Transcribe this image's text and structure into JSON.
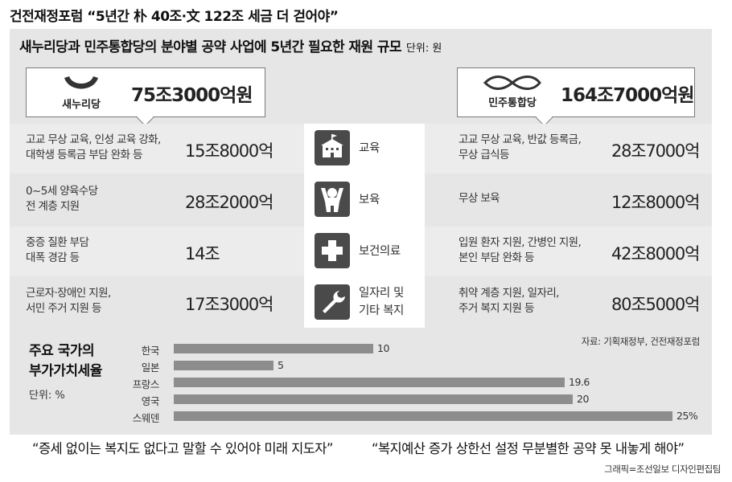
{
  "headline": "건전재정포럼 “5년간 朴 40조·文 122조 세금 더 걷어야”",
  "panel_title": "새누리당과 민주통합당의 분야별 공약 사업에 5년간 필요한 재원 규모",
  "panel_unit": "단위: 원",
  "parties": {
    "left": {
      "name": "새누리당",
      "total": "75조3000억원"
    },
    "right": {
      "name": "민주통합당",
      "total": "164조7000억원"
    }
  },
  "rows": [
    {
      "category": "교육",
      "icon": "school-icon",
      "left_desc": [
        "고교 무상 교육, 인성 교육 강화,",
        "대학생 등록금 부담 완화 등"
      ],
      "left_amount": "15조8000억",
      "right_desc": [
        "고교 무상 교육, 반값 등록금,",
        "무상 급식등"
      ],
      "right_amount": "28조7000억"
    },
    {
      "category": "보육",
      "icon": "child-care-icon",
      "left_desc": [
        "0~5세 양육수당",
        "전 계층 지원"
      ],
      "left_amount": "28조2000억",
      "right_desc": [
        "무상 보육"
      ],
      "right_amount": "12조8000억"
    },
    {
      "category": "보건의료",
      "icon": "medical-cross-icon",
      "left_desc": [
        "중증 질환 부담",
        "대폭 경감 등"
      ],
      "left_amount": "14조",
      "right_desc": [
        "입원 환자 지원, 간병인 지원,",
        "본인 부담 완화 등"
      ],
      "right_amount": "42조8000억"
    },
    {
      "category": "일자리 및 기타 복지",
      "category_lines": [
        "일자리 및",
        "기타 복지"
      ],
      "icon": "wrench-icon",
      "left_desc": [
        "근로자·장애인 지원,",
        "서민 주거 지원 등"
      ],
      "left_amount": "17조3000억",
      "right_desc": [
        "취약 계층 지원, 일자리,",
        "주거 복지 지원 등"
      ],
      "right_amount": "80조5000억"
    }
  ],
  "source": "자료: 기획재정부, 건전재정포럼",
  "chart_data": {
    "type": "bar",
    "orientation": "horizontal",
    "title": "주요 국가의 부가가치세율",
    "title_lines": [
      "주요 국가의",
      "부가가치세율"
    ],
    "unit": "단위: %",
    "categories": [
      "한국",
      "일본",
      "프랑스",
      "영국",
      "스웨덴"
    ],
    "values": [
      10,
      5,
      19.6,
      20,
      25
    ],
    "value_labels": [
      "10",
      "5",
      "19.6",
      "20",
      "25%"
    ],
    "xlim": [
      0,
      25
    ],
    "grid": false,
    "bar_color": "#8d8d8d"
  },
  "quotes": [
    "“증세 없이는 복지도 없다고   말할 수 있어야 미래 지도자”",
    "“복지예산 증가 상한선 설정   무분별한 공약 못 내놓게 해야”"
  ],
  "credit": "그래픽=조선일보 디자인편집팀"
}
